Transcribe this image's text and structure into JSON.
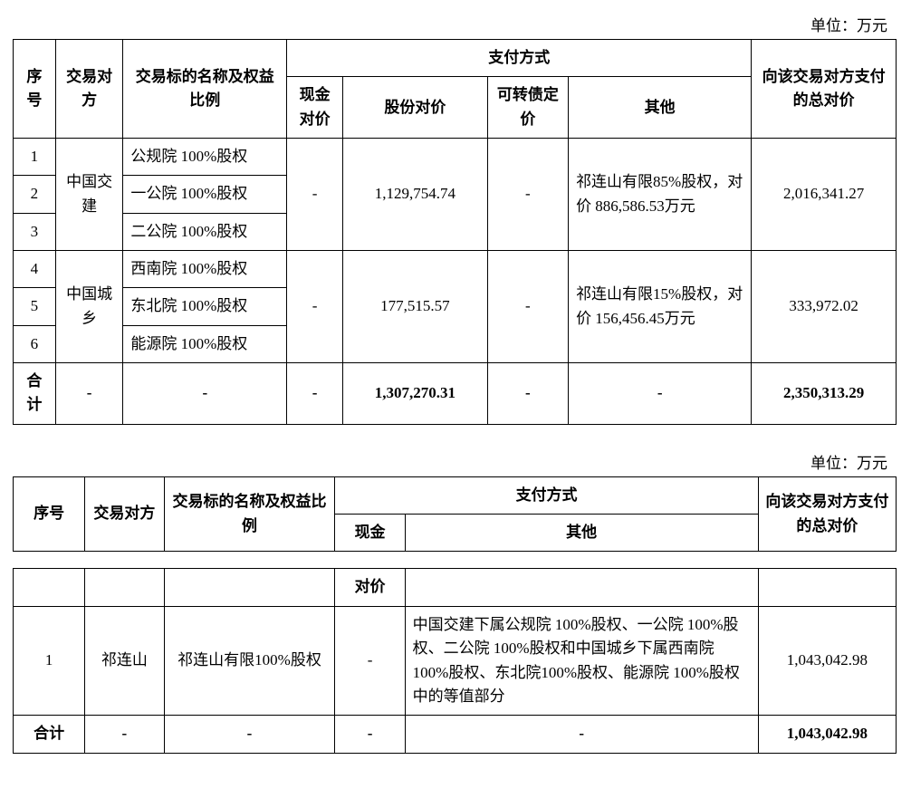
{
  "unit_label": "单位：万元",
  "table1": {
    "headers": {
      "seq": "序号",
      "party": "交易对方",
      "target": "交易标的名称及权益比例",
      "pay_method": "支付方式",
      "cash": "现金对价",
      "share": "股份对价",
      "conv": "可转债定价",
      "other": "其他",
      "total": "向该交易对方支付的总对价"
    },
    "group1": {
      "party": "中国交建",
      "rows": [
        {
          "seq": "1",
          "target": "公规院 100%股权"
        },
        {
          "seq": "2",
          "target": "一公院 100%股权"
        },
        {
          "seq": "3",
          "target": "二公院 100%股权"
        }
      ],
      "cash": "-",
      "share": "1,129,754.74",
      "conv": "-",
      "other": "祁连山有限85%股权，对价 886,586.53万元",
      "total": "2,016,341.27"
    },
    "group2": {
      "party": "中国城乡",
      "rows": [
        {
          "seq": "4",
          "target": "西南院 100%股权"
        },
        {
          "seq": "5",
          "target": "东北院 100%股权"
        },
        {
          "seq": "6",
          "target": "能源院 100%股权"
        }
      ],
      "cash": "-",
      "share": "177,515.57",
      "conv": "-",
      "other": "祁连山有限15%股权，对价 156,456.45万元",
      "total": "333,972.02"
    },
    "totals": {
      "label": "合计",
      "party": "-",
      "target": "-",
      "cash": "-",
      "share": "1,307,270.31",
      "conv": "-",
      "other": "-",
      "total": "2,350,313.29"
    }
  },
  "table2": {
    "headers": {
      "seq": "序号",
      "party": "交易对方",
      "target": "交易标的名称及权益比例",
      "pay_method": "支付方式",
      "cash": "现金",
      "other": "其他",
      "total": "向该交易对方支付的总对价",
      "cash2": "对价"
    },
    "row": {
      "seq": "1",
      "party": "祁连山",
      "target": "祁连山有限100%股权",
      "cash": "-",
      "other": "中国交建下属公规院 100%股权、一公院 100%股权、二公院 100%股权和中国城乡下属西南院 100%股权、东北院100%股权、能源院 100%股权中的等值部分",
      "total": "1,043,042.98"
    },
    "totals": {
      "label": "合计",
      "party": "-",
      "target": "-",
      "cash": "-",
      "other": "-",
      "total": "1,043,042.98"
    }
  }
}
